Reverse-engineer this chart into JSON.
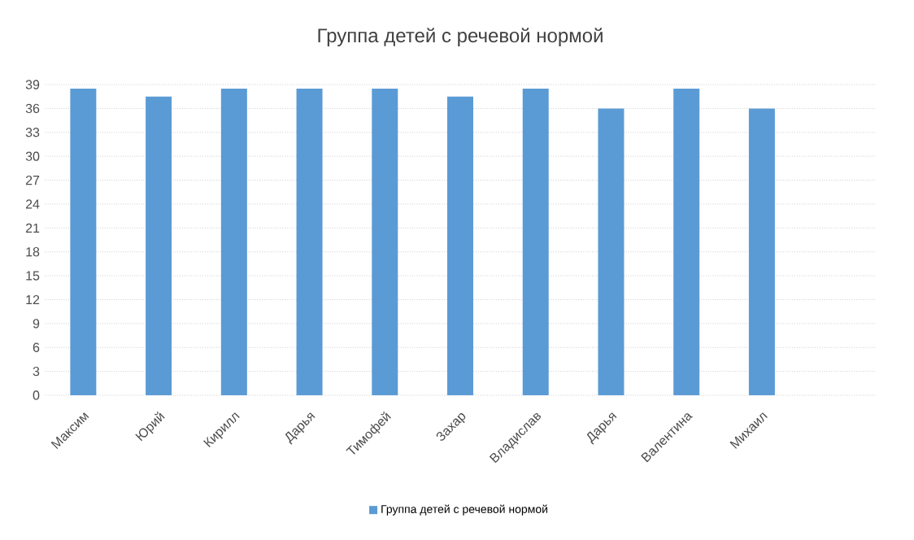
{
  "chart_data": {
    "type": "bar",
    "title": "Группа детей с речевой нормой",
    "categories": [
      "Максим",
      "Юрий",
      "Кирилл",
      "Дарья",
      "Тимофей",
      "Захар",
      "Владислав",
      "Дарья",
      "Валентина",
      "Михаил"
    ],
    "series": [
      {
        "name": "Группа детей с речевой нормой",
        "color": "#5b9bd5",
        "values": [
          38.5,
          37.5,
          38.5,
          38.5,
          38.5,
          37.5,
          38.5,
          36,
          38.5,
          36
        ]
      }
    ],
    "ylim": [
      0,
      39
    ],
    "yticks": [
      0,
      3,
      6,
      9,
      12,
      15,
      18,
      21,
      24,
      27,
      30,
      33,
      36,
      39
    ],
    "grid": "y",
    "legend": "bottom"
  }
}
